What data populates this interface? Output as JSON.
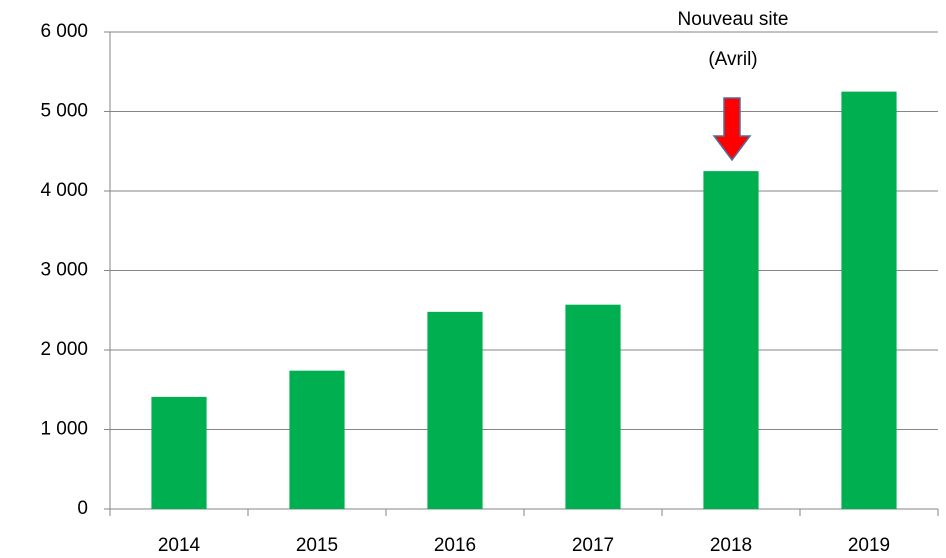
{
  "chart_data": {
    "type": "bar",
    "categories": [
      "2014",
      "2015",
      "2016",
      "2017",
      "2018",
      "2019"
    ],
    "values": [
      1410,
      1740,
      2480,
      2570,
      4250,
      5250
    ],
    "color": "#00b050",
    "ylim": [
      0,
      6000
    ],
    "yticks": [
      0,
      {
        "value": 1000,
        "label": "1 000"
      },
      {
        "value": 2000,
        "label": "2 000"
      },
      {
        "value": 3000,
        "label": "3 000"
      },
      {
        "value": 4000,
        "label": "4 000"
      },
      {
        "value": 5000,
        "label": "5 000"
      },
      {
        "value": 6000,
        "label": "6 000"
      }
    ],
    "grid": true,
    "annotation": [
      "Nouveau site",
      "(Avril)"
    ],
    "annotation_color": "#ff0000"
  }
}
